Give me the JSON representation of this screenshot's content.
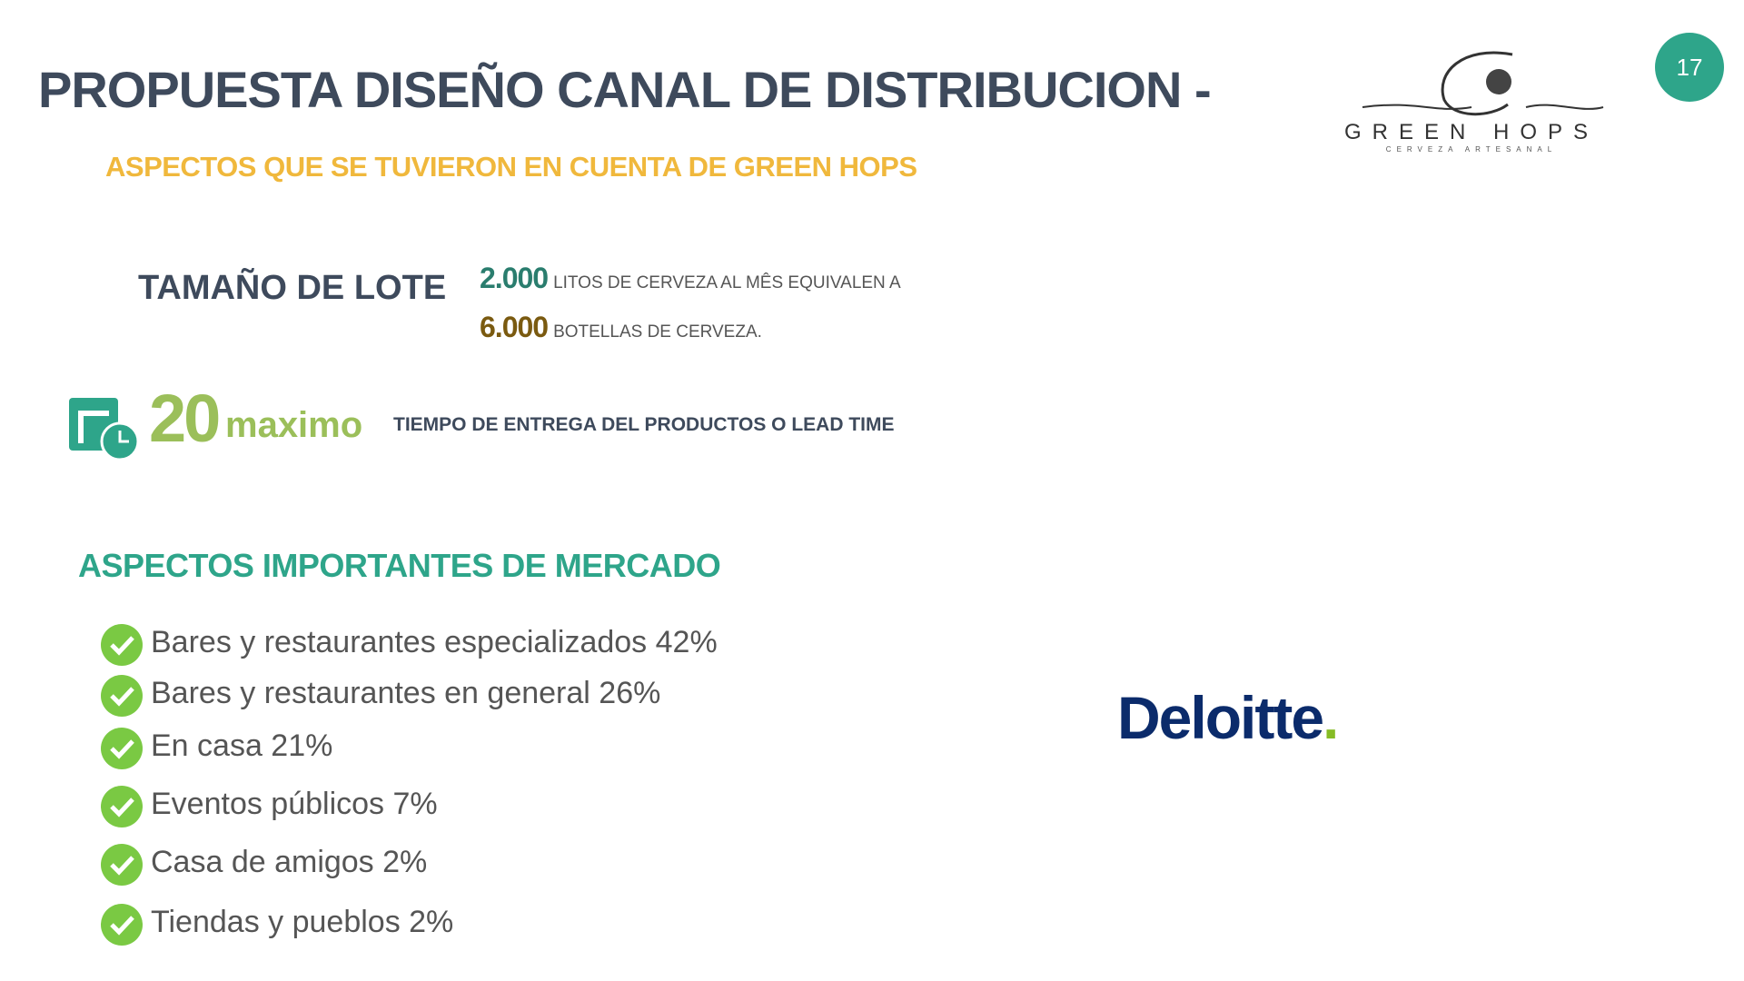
{
  "page_number": "17",
  "header": {
    "title": "PROPUESTA DISEÑO CANAL DE DISTRIBUCION -",
    "subtitle": "ASPECTOS QUE SE TUVIERON EN CUENTA DE GREEN HOPS"
  },
  "logo": {
    "name": "GREEN HOPS",
    "tagline": "CERVEZA ARTESANAL"
  },
  "lot": {
    "label": "TAMAÑO DE LOTE",
    "lines": [
      {
        "amount": "2.000",
        "text": "LITOS DE CERVEZA AL MÊS EQUIVALEN A"
      },
      {
        "amount": "6.000",
        "text": "BOTELLAS DE CERVEZA."
      }
    ]
  },
  "lead_time": {
    "amount": "20",
    "unit": "maximo",
    "description": "TIEMPO DE ENTREGA DEL PRODUCTOS O LEAD TIME"
  },
  "market": {
    "heading": "ASPECTOS IMPORTANTES DE MERCADO",
    "items": [
      "Bares y restaurantes especializados 42%",
      "Bares y restaurantes en general 26%",
      "En casa 21%",
      "Eventos públicos 7%",
      "Casa de amigos 2%",
      "Tiendas y pueblos 2%"
    ]
  },
  "brand": {
    "name": "Deloitte",
    "dot": "."
  }
}
